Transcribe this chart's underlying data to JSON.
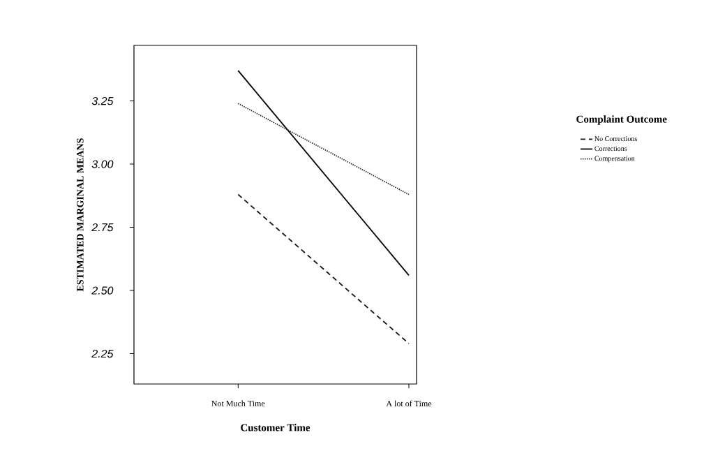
{
  "chart_data": {
    "type": "line",
    "xlabel": "Customer Time",
    "ylabel": "ESTIMATED MARGINAL MEANS",
    "legend_title": "Complaint Outcome",
    "legend": "right",
    "categories": [
      "Not Much Time",
      "A lot of Time"
    ],
    "series": [
      {
        "name": "No Corrections",
        "color": "#141414",
        "line_style": "dashed",
        "values": [
          2.88,
          2.29
        ]
      },
      {
        "name": "Corrections",
        "color": "#000000",
        "line_style": "solid",
        "values": [
          3.37,
          2.56
        ]
      },
      {
        "name": "Compensation",
        "color": "#282828",
        "line_style": "dotted",
        "values": [
          3.24,
          2.88
        ]
      }
    ],
    "ylim": [
      2.13,
      3.47
    ],
    "yticks": [
      {
        "value": 2.25,
        "label": "2.25"
      },
      {
        "value": 2.5,
        "label": "2.50"
      },
      {
        "value": 2.75,
        "label": "2.75"
      },
      {
        "value": 3,
        "label": "3.00"
      },
      {
        "value": 3.25,
        "label": "3.25"
      }
    ]
  }
}
